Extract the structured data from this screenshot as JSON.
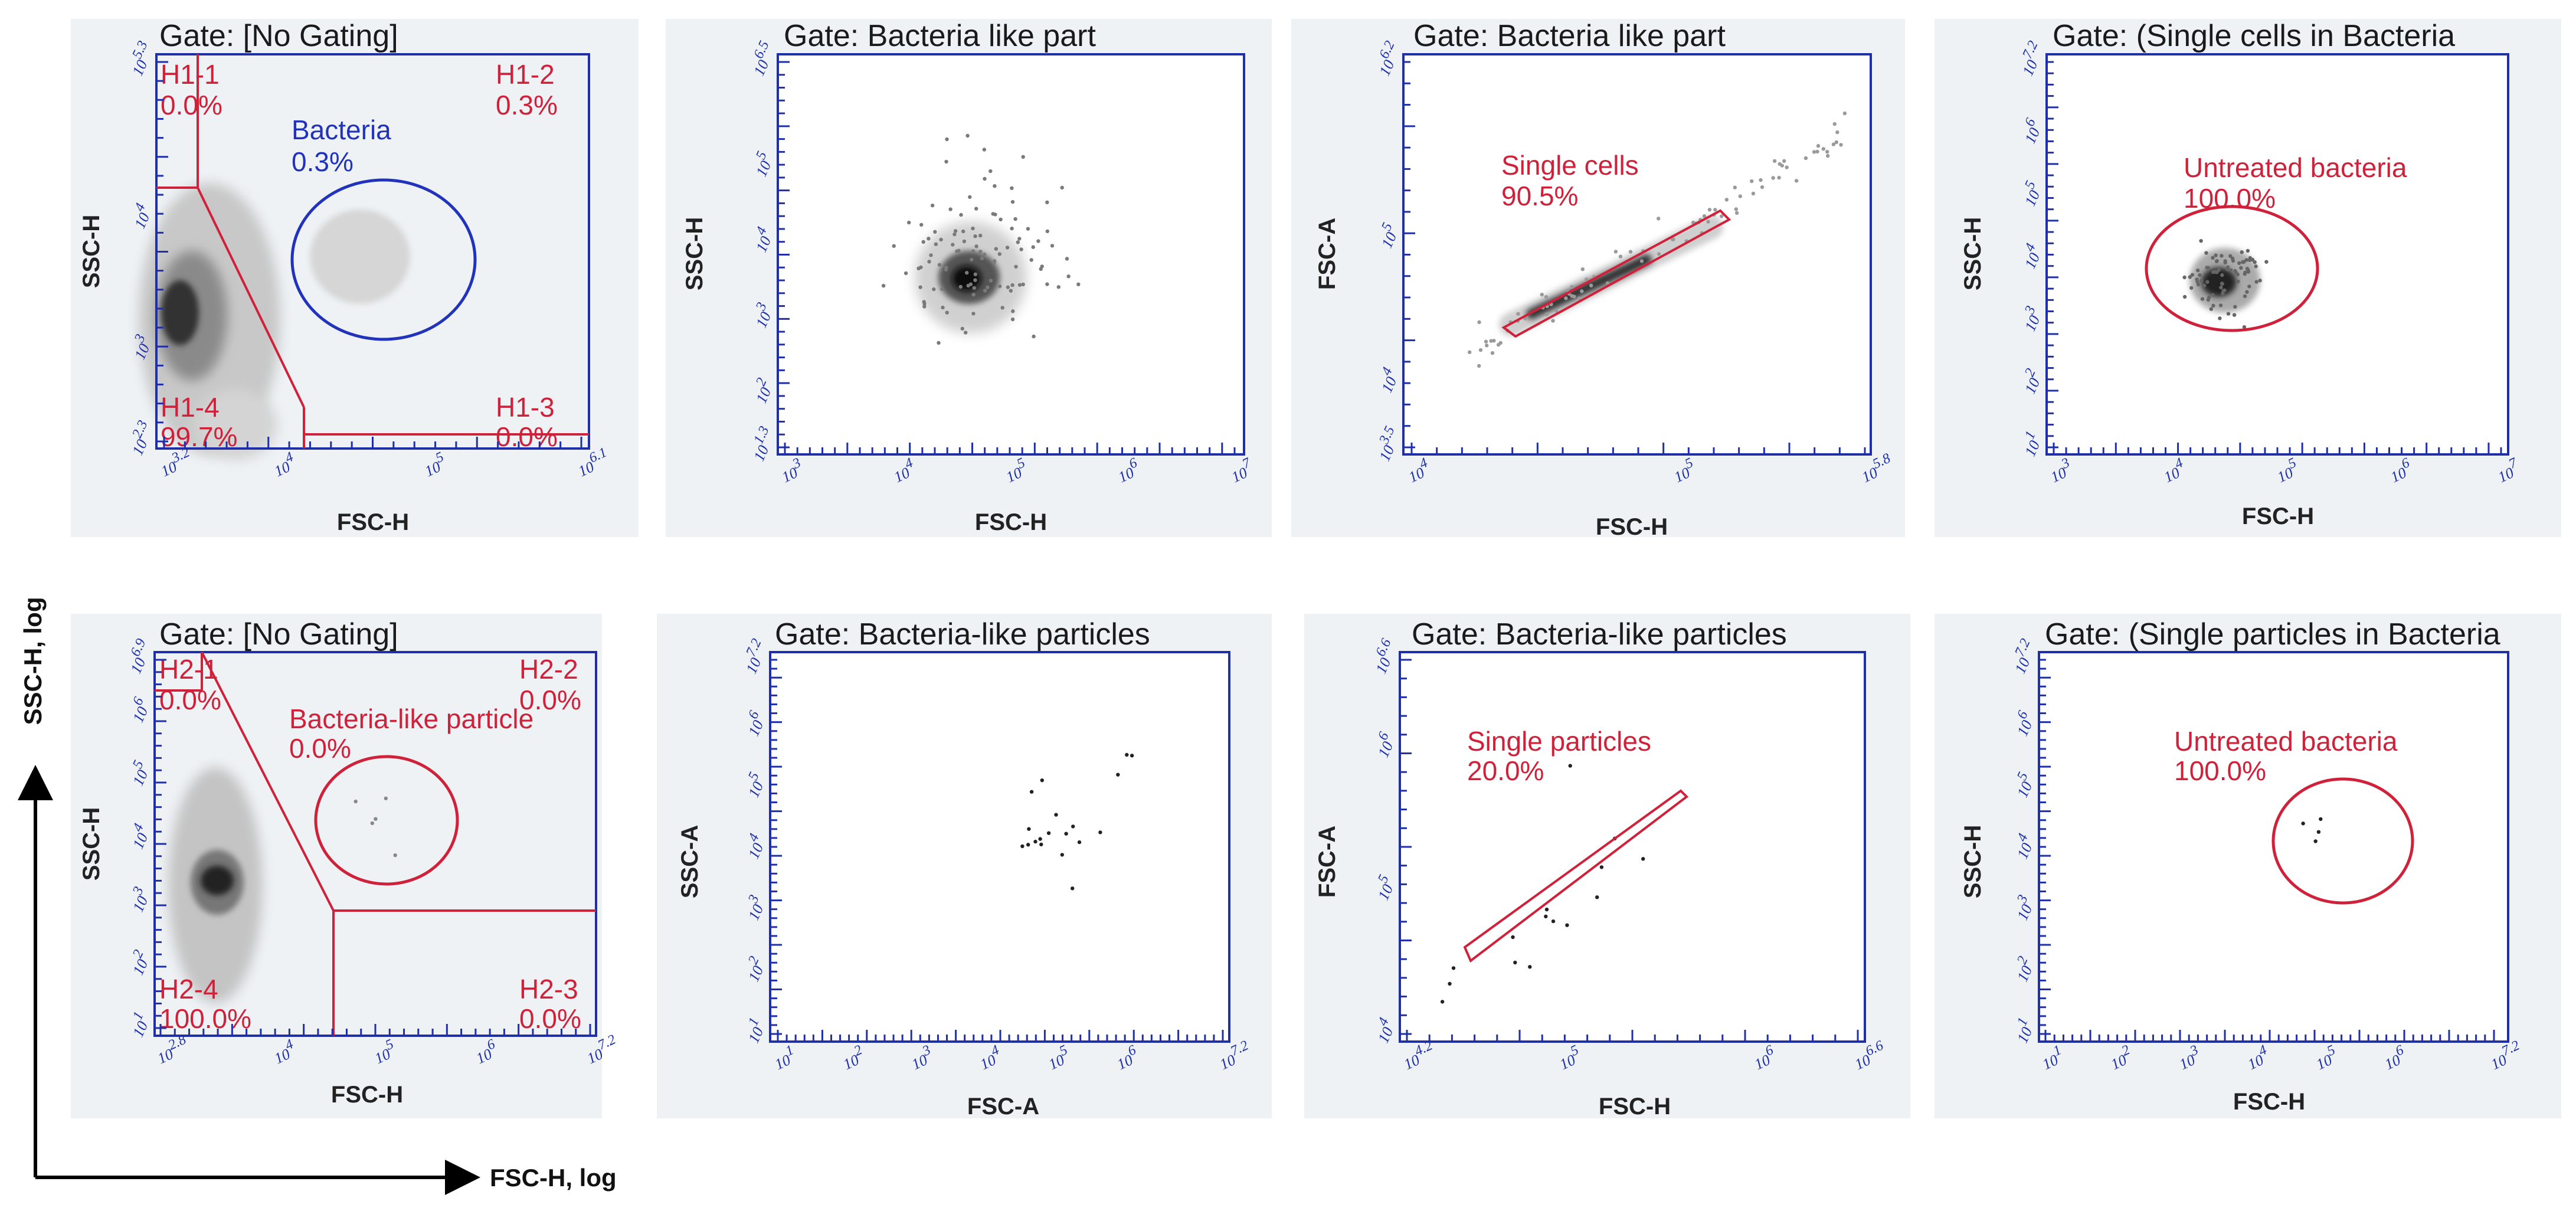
{
  "figure": {
    "y_axis_label": "SSC-H, log",
    "x_axis_label": "FSC-H, log"
  },
  "colors": {
    "axis": "#1f2fa8",
    "gate_red": "#d0213a",
    "gate_blue": "#2233bb",
    "panel_bg": "#eef2f5"
  },
  "chart_data": [
    {
      "type": "scatter",
      "title": "Gate: [No Gating]",
      "xlabel": "FSC-H",
      "ylabel": "SSC-H",
      "xscale": "log",
      "yscale": "log",
      "xlim": [
        3.2,
        6.1
      ],
      "ylim": [
        2.3,
        5.3
      ],
      "xticks": [
        "3.2",
        "4",
        "5",
        "6.1"
      ],
      "yticks": [
        "2.3",
        "3",
        "4",
        "5.3"
      ],
      "quadrants": [
        {
          "name": "H1-1",
          "value": "0.0%"
        },
        {
          "name": "H1-2",
          "value": "0.3%"
        },
        {
          "name": "H1-3",
          "value": "0.0%"
        },
        {
          "name": "H1-4",
          "value": "99.7%"
        }
      ],
      "gate": {
        "name": "Bacteria",
        "value": "0.3%",
        "shape": "ellipse",
        "color": "blue"
      }
    },
    {
      "type": "scatter",
      "title": "Gate: Bacteria like part",
      "xlabel": "FSC-H",
      "ylabel": "SSC-H",
      "xscale": "log",
      "yscale": "log",
      "xlim": [
        3,
        7
      ],
      "ylim": [
        1.3,
        6.5
      ],
      "xticks": [
        "3",
        "4",
        "5",
        "6",
        "7"
      ],
      "yticks": [
        "1.3",
        "2",
        "3",
        "4",
        "5",
        "6.5"
      ]
    },
    {
      "type": "scatter",
      "title": "Gate: Bacteria like part",
      "xlabel": "FSC-H",
      "ylabel": "FSC-A",
      "xscale": "log",
      "yscale": "log",
      "xlim": [
        4,
        5.8
      ],
      "ylim": [
        3.5,
        6.2
      ],
      "xticks": [
        "4",
        "5",
        "5.8"
      ],
      "yticks": [
        "3.5",
        "4",
        "5",
        "6.2"
      ],
      "gate": {
        "name": "Single cells",
        "value": "90.5%",
        "shape": "polygon",
        "color": "red"
      }
    },
    {
      "type": "scatter",
      "title": "Gate: (Single cells in Bacteria",
      "xlabel": "FSC-H",
      "ylabel": "SSC-H",
      "xscale": "log",
      "yscale": "log",
      "xlim": [
        3,
        7
      ],
      "ylim": [
        1,
        7.2
      ],
      "xticks": [
        "3",
        "4",
        "5",
        "6",
        "7"
      ],
      "yticks": [
        "1",
        "2",
        "3",
        "4",
        "5",
        "6",
        "7.2"
      ],
      "gate": {
        "name": "Untreated bacteria",
        "value": "100.0%",
        "shape": "ellipse",
        "color": "red"
      }
    },
    {
      "type": "scatter",
      "title": "Gate: [No Gating]",
      "xlabel": "FSC-H",
      "ylabel": "SSC-H",
      "xscale": "log",
      "yscale": "log",
      "xlim": [
        2.8,
        7.2
      ],
      "ylim": [
        1,
        6.9
      ],
      "xticks": [
        "2.8",
        "4",
        "5",
        "6",
        "7.2"
      ],
      "yticks": [
        "1",
        "2",
        "3",
        "4",
        "5",
        "6",
        "6.9"
      ],
      "quadrants": [
        {
          "name": "H2-1",
          "value": "0.0%"
        },
        {
          "name": "H2-2",
          "value": "0.0%"
        },
        {
          "name": "H2-3",
          "value": "0.0%"
        },
        {
          "name": "H2-4",
          "value": "100.0%"
        }
      ],
      "gate": {
        "name": "Bacteria-like particle",
        "value": "0.0%",
        "shape": "ellipse",
        "color": "red"
      }
    },
    {
      "type": "scatter",
      "title": "Gate: Bacteria-like particles",
      "xlabel": "FSC-A",
      "ylabel": "SSC-A",
      "xscale": "log",
      "yscale": "log",
      "xlim": [
        1,
        7.2
      ],
      "ylim": [
        1,
        7.2
      ],
      "xticks": [
        "1",
        "2",
        "3",
        "4",
        "5",
        "6",
        "7.2"
      ],
      "yticks": [
        "1",
        "2",
        "3",
        "4",
        "5",
        "6",
        "7.2"
      ]
    },
    {
      "type": "scatter",
      "title": "Gate: Bacteria-like particles",
      "xlabel": "FSC-H",
      "ylabel": "FSC-A",
      "xscale": "log",
      "yscale": "log",
      "xlim": [
        4.2,
        6.6
      ],
      "ylim": [
        4,
        6.6
      ],
      "xticks": [
        "4.2",
        "5",
        "6",
        "6.6"
      ],
      "yticks": [
        "4",
        "5",
        "6",
        "6.6"
      ],
      "gate": {
        "name": "Single particles",
        "value": "20.0%",
        "shape": "polygon",
        "color": "red"
      }
    },
    {
      "type": "scatter",
      "title": "Gate: (Single particles in Bacteria",
      "xlabel": "FSC-H",
      "ylabel": "SSC-H",
      "xscale": "log",
      "yscale": "log",
      "xlim": [
        1,
        7.2
      ],
      "ylim": [
        1,
        7.2
      ],
      "xticks": [
        "1",
        "2",
        "3",
        "4",
        "5",
        "6",
        "7.2"
      ],
      "yticks": [
        "1",
        "2",
        "3",
        "4",
        "5",
        "6",
        "7.2"
      ],
      "gate": {
        "name": "Untreated bacteria",
        "value": "100.0%",
        "shape": "ellipse",
        "color": "red"
      }
    }
  ]
}
